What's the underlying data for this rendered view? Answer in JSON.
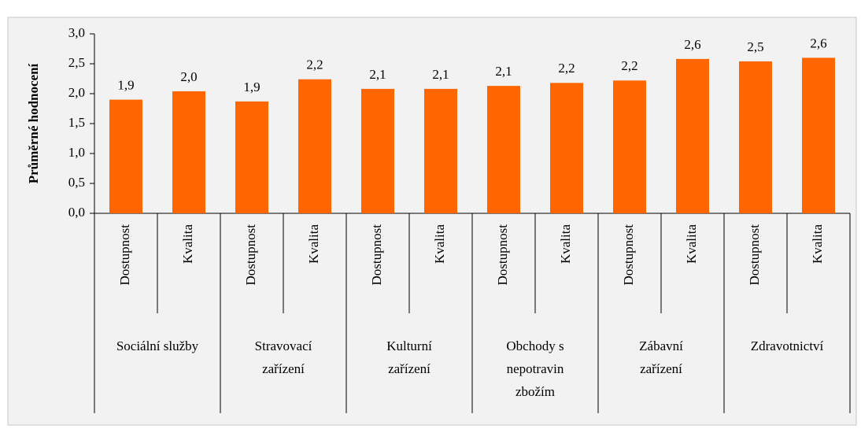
{
  "chart_data": {
    "type": "bar",
    "y_label": "Průměrné hodnocení",
    "categories": [
      "Dostupnost",
      "Kvalita",
      "Dostupnost",
      "Kvalita",
      "Dostupnost",
      "Kvalita",
      "Dostupnost",
      "Kvalita",
      "Dostupnost",
      "Kvalita",
      "Dostupnost",
      "Kvalita"
    ],
    "groups": [
      [
        "Sociální služby"
      ],
      [
        "Stravovací",
        "zařízení"
      ],
      [
        "Kulturní",
        "zařízení"
      ],
      [
        "Obchody s",
        "nepotravin",
        "zbožím"
      ],
      [
        "Zábavní",
        "zařízení"
      ],
      [
        "Zdravotnictví"
      ]
    ],
    "values": [
      1.9,
      2.04,
      1.87,
      2.24,
      2.08,
      2.08,
      2.13,
      2.18,
      2.22,
      2.58,
      2.54,
      2.6
    ],
    "value_labels": [
      "1,9",
      "2,0",
      "1,9",
      "2,2",
      "2,1",
      "2,1",
      "2,1",
      "2,2",
      "2,2",
      "2,6",
      "2,5",
      "2,6"
    ],
    "color": "#ff6600",
    "ylim": [
      0,
      3
    ],
    "yticks": [
      {
        "value": 0,
        "label": "0,0"
      },
      {
        "value": 0.5,
        "label": "0,5"
      },
      {
        "value": 1,
        "label": "1,0"
      },
      {
        "value": 1.5,
        "label": "1,5"
      },
      {
        "value": 2,
        "label": "2,0"
      },
      {
        "value": 2.5,
        "label": "2,5"
      },
      {
        "value": 3,
        "label": "3,0"
      }
    ],
    "grid": false
  }
}
